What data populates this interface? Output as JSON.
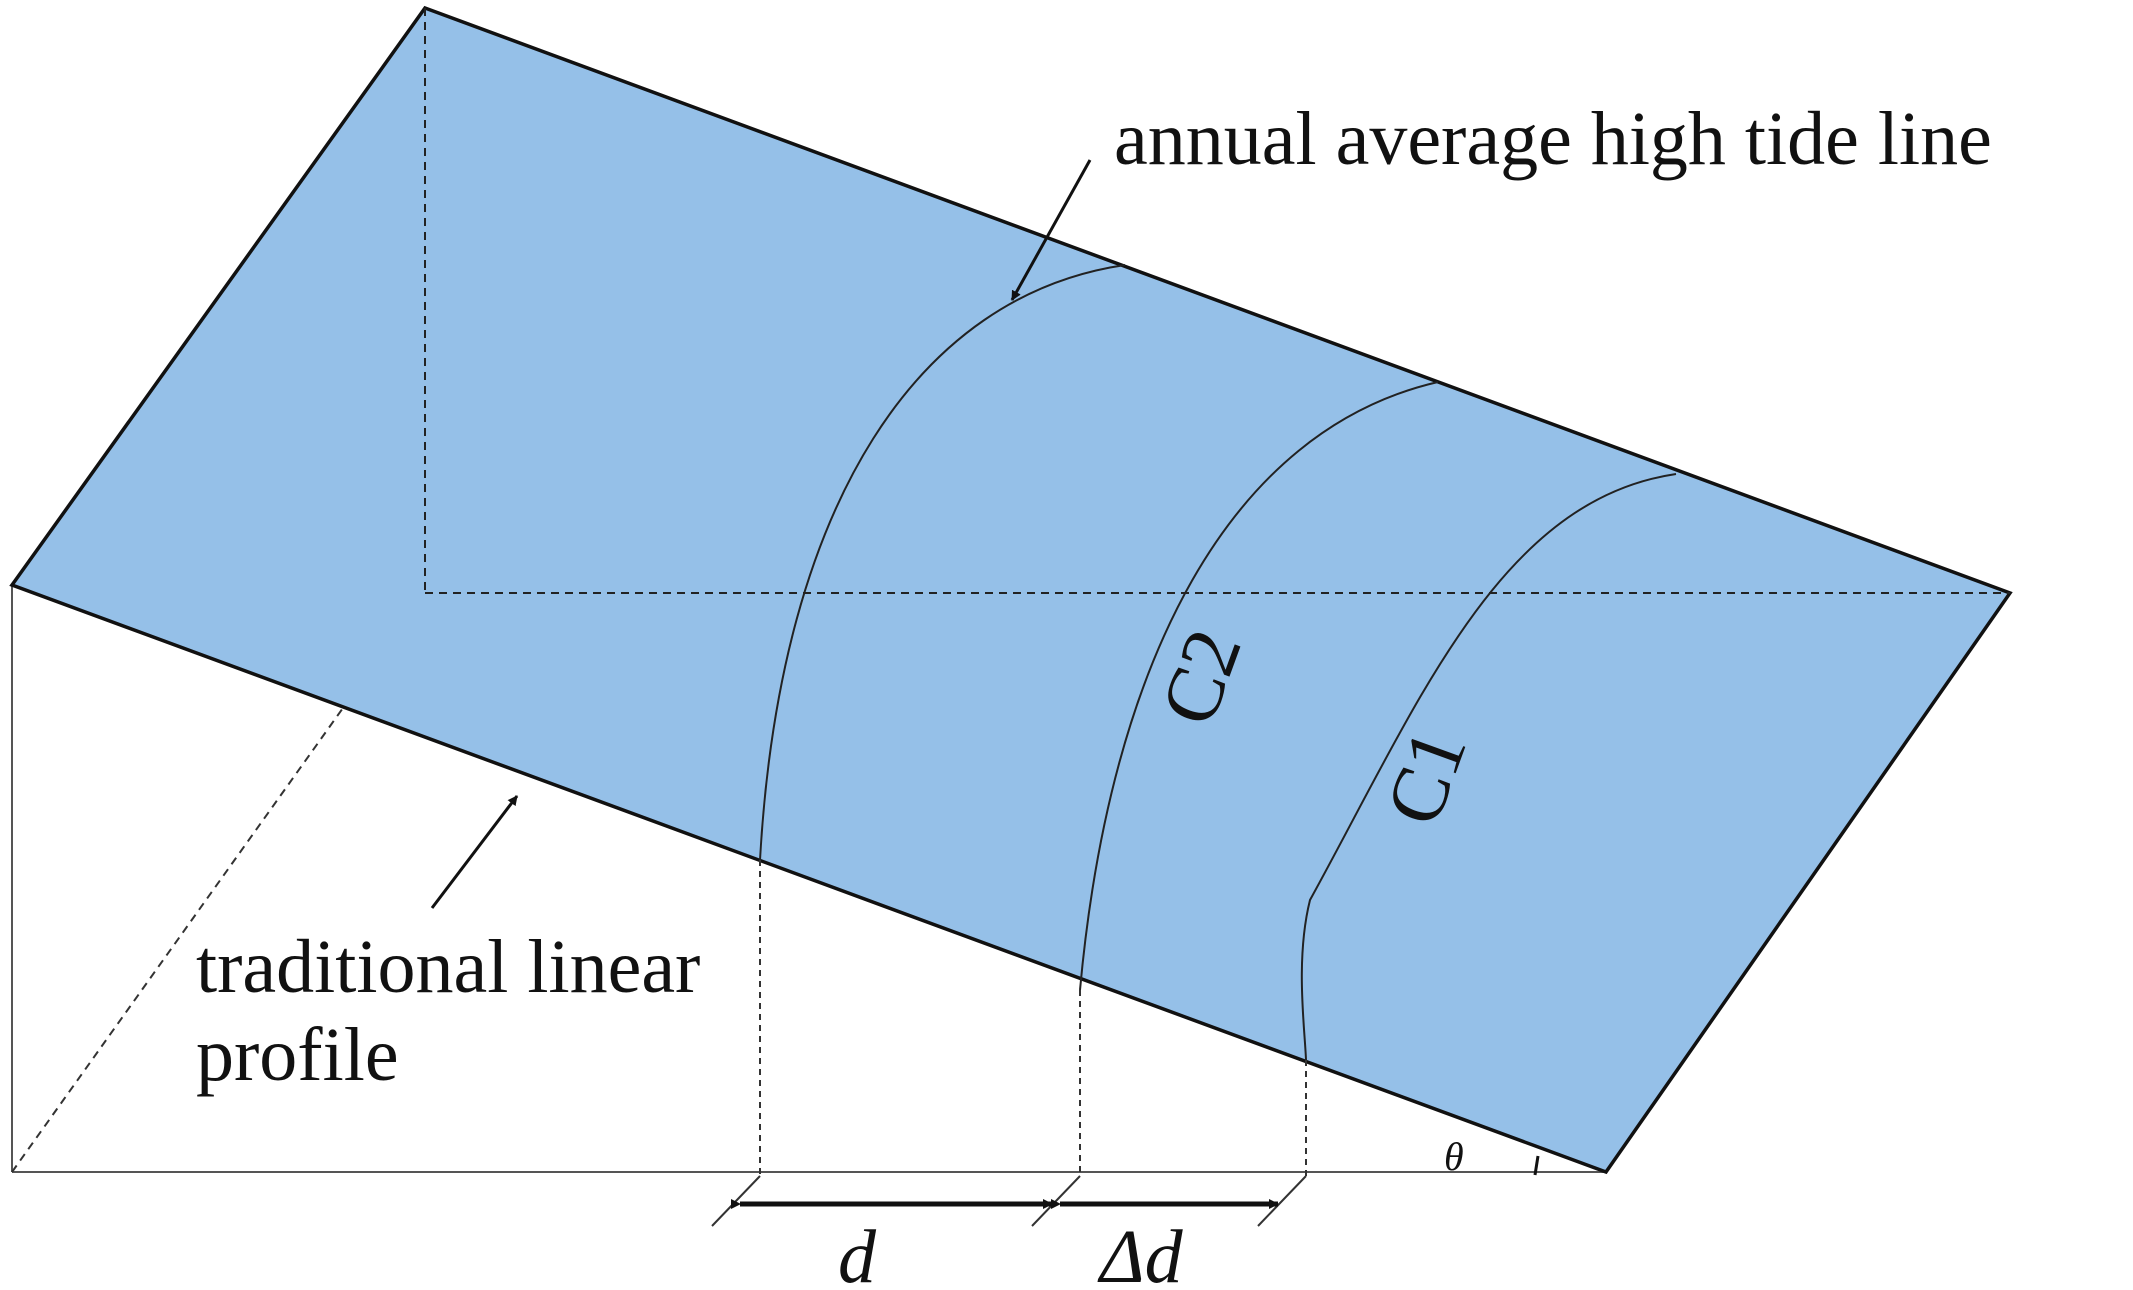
{
  "labels": {
    "high_tide_line": "annual average high tide line",
    "linear_profile_line1": "traditional linear",
    "linear_profile_line2": "profile",
    "curve_c2": "C2",
    "curve_c1": "C1",
    "angle": "θ",
    "distance_d": "d",
    "distance_delta_d": "Δd"
  },
  "colors": {
    "surface_fill": "#95c0e8",
    "stroke": "#111111"
  }
}
